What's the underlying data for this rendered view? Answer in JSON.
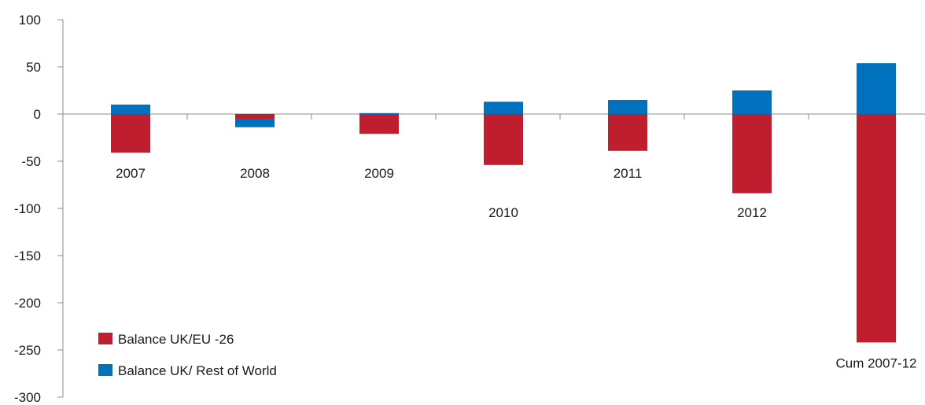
{
  "chart_data": {
    "type": "bar",
    "stacked": true,
    "categories": [
      "2007",
      "2008",
      "2009",
      "2010",
      "2011",
      "2012",
      "Cum 2007-12"
    ],
    "series": [
      {
        "name": "Balance UK/EU -26",
        "color": "#be1e2d",
        "values": [
          -41,
          -5,
          -21,
          -54,
          -39,
          -84,
          -242
        ]
      },
      {
        "name": "Balance UK/ Rest of World",
        "color": "#0071bc",
        "values": [
          10,
          -9,
          1,
          13,
          15,
          25,
          54
        ]
      }
    ],
    "ylim": [
      -300,
      100
    ],
    "yticks": [
      "100",
      "50",
      "0",
      "-50",
      "-100",
      "-150",
      "-200",
      "-250",
      "-300"
    ],
    "yticks_values": [
      100,
      50,
      0,
      -50,
      -100,
      -150,
      -200,
      -250,
      -300
    ],
    "grid": false,
    "legend_position": "bottom-left",
    "xlabel": "",
    "ylabel": ""
  }
}
